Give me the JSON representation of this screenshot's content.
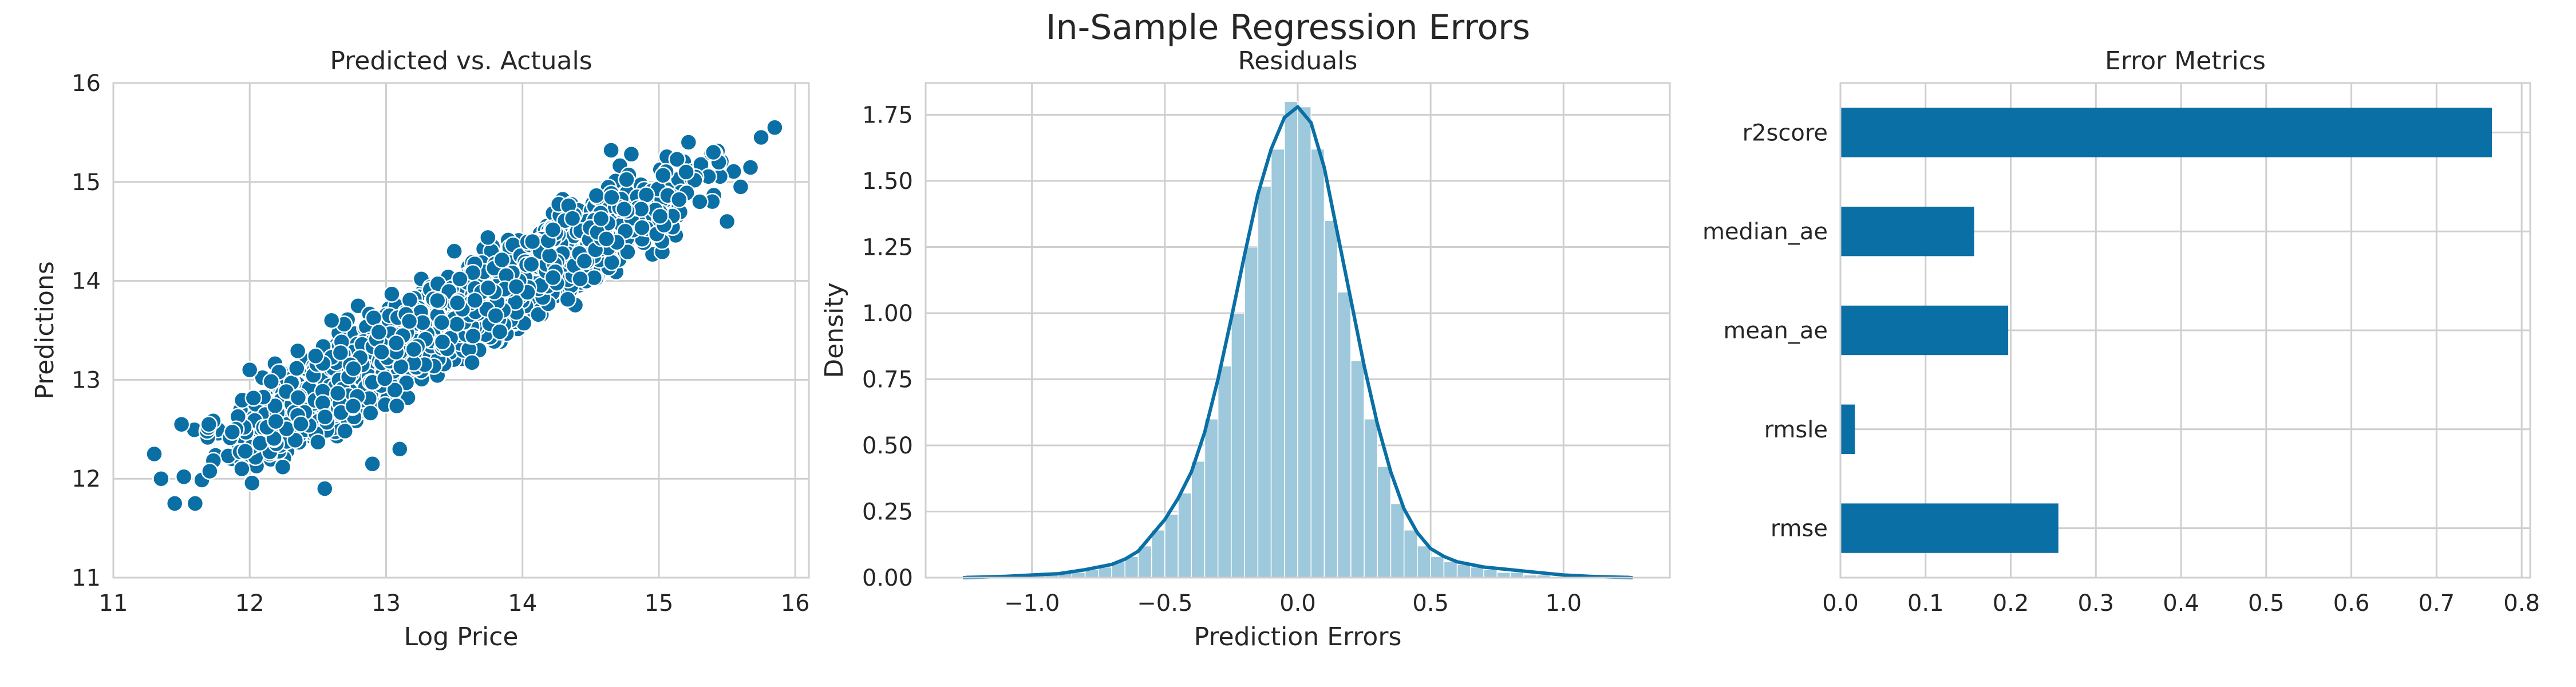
{
  "figure": {
    "suptitle": "In-Sample Regression Errors"
  },
  "colors": {
    "primary": "#0a6fa5",
    "hist_fill": "#9ec8db",
    "grid": "#cfcfcf",
    "frame": "#cfcfcf",
    "marker_edge": "#ffffff",
    "text": "#262626"
  },
  "chart_data": [
    {
      "type": "scatter",
      "title": "Predicted vs. Actuals",
      "xlabel": "Log Price",
      "ylabel": "Predictions",
      "xlim": [
        11,
        16.1
      ],
      "ylim": [
        11,
        16
      ],
      "xticks": [
        11,
        12,
        13,
        14,
        15,
        16
      ],
      "yticks": [
        11,
        12,
        13,
        14,
        15,
        16
      ],
      "grid": true,
      "trend": {
        "slope": 0.77,
        "intercept": 3.25,
        "spread": 0.3
      },
      "x_range": [
        11.25,
        15.85
      ],
      "point_count": 2200,
      "notable_points": [
        [
          15.85,
          15.55
        ],
        [
          15.75,
          15.45
        ],
        [
          15.4,
          15.3
        ],
        [
          14.65,
          15.32
        ],
        [
          15.2,
          15.1
        ],
        [
          15.6,
          14.95
        ],
        [
          15.3,
          14.8
        ],
        [
          15.5,
          14.6
        ],
        [
          11.3,
          12.25
        ],
        [
          11.35,
          12.0
        ],
        [
          11.45,
          11.75
        ],
        [
          11.6,
          11.75
        ],
        [
          11.5,
          12.55
        ],
        [
          11.7,
          12.55
        ],
        [
          12.0,
          13.1
        ],
        [
          12.6,
          13.6
        ],
        [
          12.55,
          11.9
        ],
        [
          12.9,
          12.15
        ],
        [
          13.1,
          12.3
        ],
        [
          13.5,
          14.3
        ]
      ]
    },
    {
      "type": "histogram+kde",
      "title": "Residuals",
      "xlabel": "Prediction Errors",
      "ylabel": "Density",
      "xlim": [
        -1.4,
        1.4
      ],
      "ylim": [
        0,
        1.87
      ],
      "xticks": [
        -1.0,
        -0.5,
        0.0,
        0.5,
        1.0
      ],
      "xtick_labels": [
        "−1.0",
        "−0.5",
        "0.0",
        "0.5",
        "1.0"
      ],
      "yticks": [
        0.0,
        0.25,
        0.5,
        0.75,
        1.0,
        1.25,
        1.5,
        1.75
      ],
      "ytick_labels": [
        "0.00",
        "0.25",
        "0.50",
        "0.75",
        "1.00",
        "1.25",
        "1.50",
        "1.75"
      ],
      "grid": true,
      "kde": {
        "x": [
          -1.26,
          -1.1,
          -1.0,
          -0.9,
          -0.8,
          -0.7,
          -0.65,
          -0.6,
          -0.55,
          -0.5,
          -0.45,
          -0.4,
          -0.35,
          -0.3,
          -0.25,
          -0.2,
          -0.15,
          -0.1,
          -0.05,
          0.0,
          0.05,
          0.1,
          0.15,
          0.2,
          0.25,
          0.3,
          0.35,
          0.4,
          0.45,
          0.5,
          0.55,
          0.6,
          0.7,
          0.8,
          0.9,
          1.0,
          1.1,
          1.26
        ],
        "y": [
          0.0,
          0.005,
          0.01,
          0.015,
          0.03,
          0.05,
          0.07,
          0.1,
          0.16,
          0.22,
          0.3,
          0.4,
          0.55,
          0.75,
          0.98,
          1.22,
          1.45,
          1.62,
          1.74,
          1.78,
          1.72,
          1.55,
          1.3,
          1.05,
          0.8,
          0.58,
          0.4,
          0.26,
          0.17,
          0.11,
          0.08,
          0.06,
          0.04,
          0.03,
          0.02,
          0.01,
          0.005,
          0.0
        ]
      },
      "bins": {
        "start": -1.25,
        "width": 0.05,
        "heights": [
          0.01,
          0.0,
          0.0,
          0.01,
          0.0,
          0.01,
          0.01,
          0.02,
          0.02,
          0.03,
          0.04,
          0.06,
          0.08,
          0.12,
          0.18,
          0.24,
          0.32,
          0.44,
          0.6,
          0.8,
          1.0,
          1.25,
          1.48,
          1.62,
          1.8,
          1.78,
          1.62,
          1.35,
          1.08,
          0.82,
          0.6,
          0.42,
          0.28,
          0.18,
          0.12,
          0.08,
          0.06,
          0.05,
          0.04,
          0.03,
          0.02,
          0.02,
          0.01,
          0.01,
          0.0,
          0.01,
          0.0,
          0.0,
          0.0,
          0.01
        ]
      }
    },
    {
      "type": "bar",
      "orientation": "horizontal",
      "title": "Error Metrics",
      "categories": [
        "r2score",
        "median_ae",
        "mean_ae",
        "rmsle",
        "rmse"
      ],
      "values": [
        0.765,
        0.157,
        0.197,
        0.017,
        0.256
      ],
      "xlim": [
        0,
        0.81
      ],
      "xticks": [
        0.0,
        0.1,
        0.2,
        0.3,
        0.4,
        0.5,
        0.6,
        0.7,
        0.8
      ],
      "xtick_labels": [
        "0.0",
        "0.1",
        "0.2",
        "0.3",
        "0.4",
        "0.5",
        "0.6",
        "0.7",
        "0.8"
      ],
      "xlabel": "",
      "ylabel": "",
      "grid": true
    }
  ]
}
